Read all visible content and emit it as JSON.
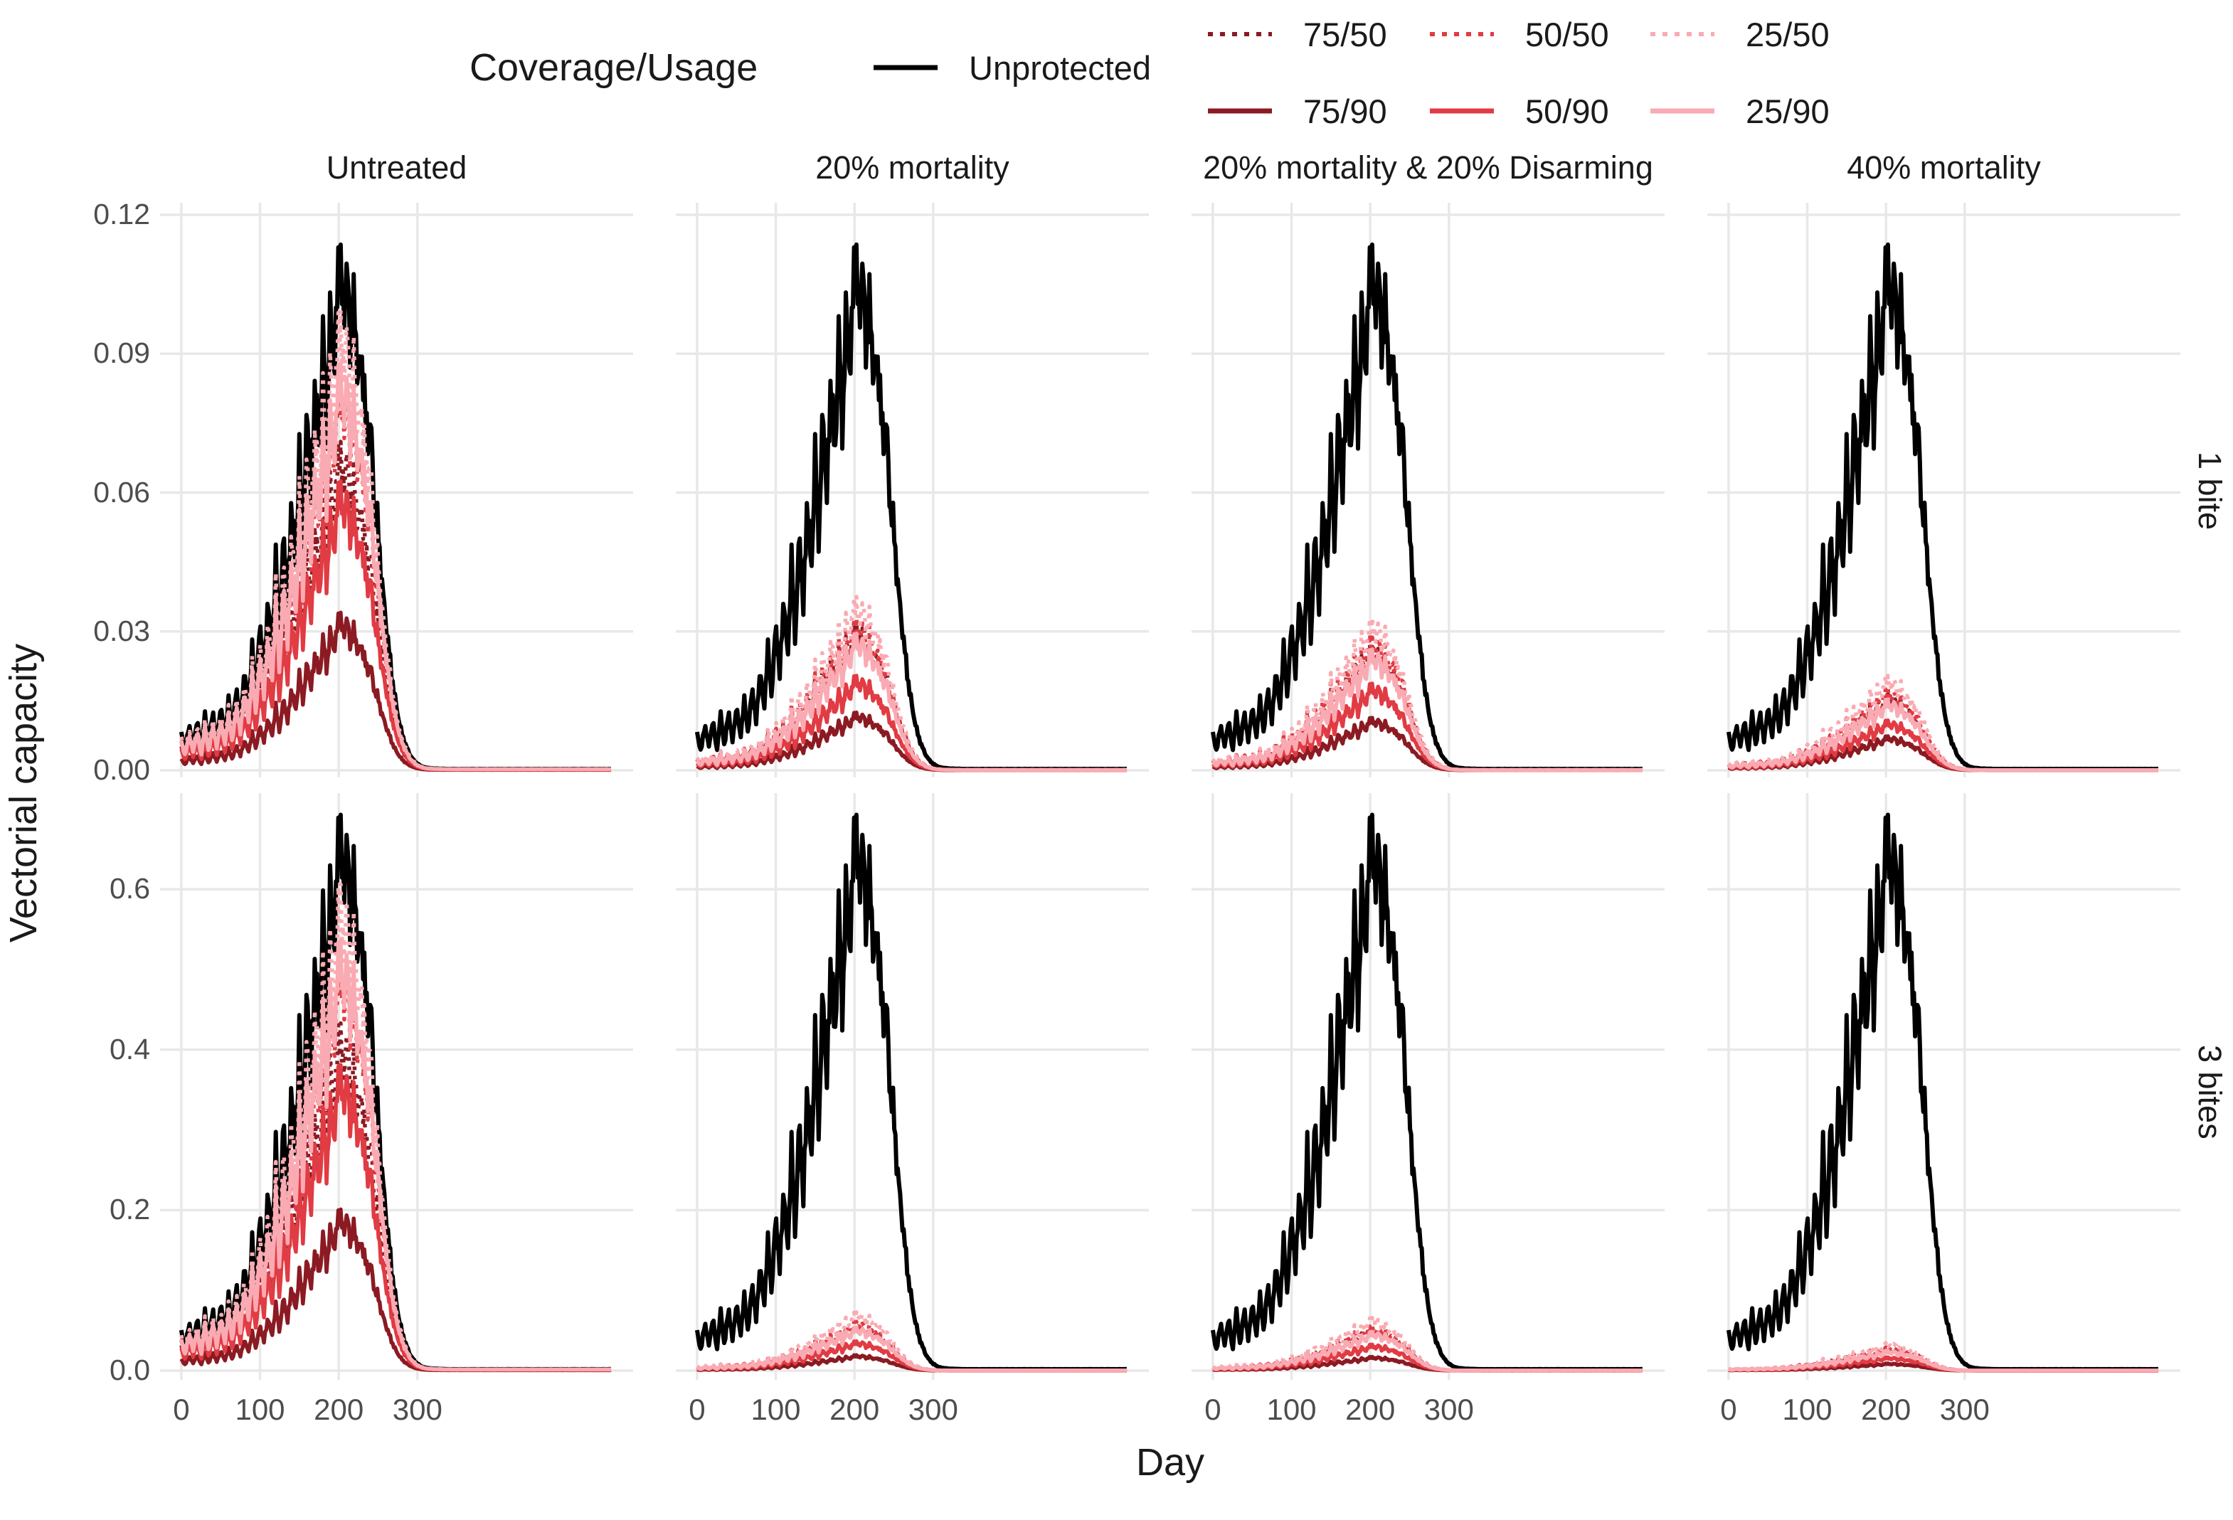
{
  "figure": {
    "legend": {
      "title": "Coverage/Usage",
      "entries": [
        {
          "id": "unprotected",
          "label": "Unprotected",
          "color": "#000000",
          "linetype": "solid"
        },
        {
          "id": "75_50",
          "label": "75/50",
          "color": "#8B1A22",
          "linetype": "dotted"
        },
        {
          "id": "50_50",
          "label": "50/50",
          "color": "#E13B43",
          "linetype": "dotted"
        },
        {
          "id": "25_50",
          "label": "25/50",
          "color": "#FAAAB2",
          "linetype": "dotted"
        },
        {
          "id": "75_90",
          "label": "75/90",
          "color": "#8B1A22",
          "linetype": "solid"
        },
        {
          "id": "50_90",
          "label": "50/90",
          "color": "#E13B43",
          "linetype": "solid"
        },
        {
          "id": "25_90",
          "label": "25/90",
          "color": "#FAAAB2",
          "linetype": "solid"
        }
      ]
    },
    "axes": {
      "x_label": "Day",
      "y_label": "Vectorial capacity"
    }
  },
  "chart_data": {
    "type": "line",
    "title": "",
    "xlabel": "Day",
    "ylabel": "Vectorial capacity",
    "facet_columns": [
      "Untreated",
      "20% mortality",
      "20% mortality & 20% Disarming",
      "40% mortality"
    ],
    "facet_rows": [
      "1 bite",
      "3 bites"
    ],
    "x": {
      "domain_days": [
        0,
        547
      ],
      "ticks": [
        0,
        100,
        200,
        300
      ]
    },
    "y_rows": [
      {
        "ticks": [
          0,
          0.03,
          0.06,
          0.09,
          0.12
        ],
        "tick_labels": [
          "0.00",
          "0.03",
          "0.06",
          "0.09",
          "0.12"
        ],
        "panel_max": 0.1226
      },
      {
        "ticks": [
          0,
          0.2,
          0.4,
          0.6
        ],
        "tick_labels": [
          "0.0",
          "0.2",
          "0.4",
          "0.6"
        ],
        "panel_max": 0.72
      }
    ],
    "grid": true,
    "grid_color": "#E8E8E8",
    "legend_position": "top",
    "row_scale": [
      1,
      6.1
    ],
    "unprotected_base_curve": {
      "comment_units": "vectorial capacity for 1 bite row; 3 bites row = value * row_scale",
      "days": [
        0,
        5,
        10,
        15,
        20,
        25,
        30,
        35,
        40,
        45,
        50,
        55,
        60,
        65,
        70,
        75,
        80,
        85,
        90,
        95,
        100,
        105,
        110,
        115,
        120,
        125,
        130,
        135,
        140,
        145,
        150,
        155,
        160,
        165,
        170,
        175,
        180,
        185,
        190,
        195,
        200,
        205,
        210,
        215,
        220,
        225,
        230,
        235,
        240,
        245,
        250,
        255,
        260,
        265,
        270,
        275,
        280,
        285,
        290,
        295,
        300,
        305,
        310,
        320,
        340,
        380,
        420,
        480,
        547
      ],
      "values": [
        0.008,
        0.004,
        0.01,
        0.005,
        0.011,
        0.004,
        0.012,
        0.005,
        0.013,
        0.006,
        0.014,
        0.007,
        0.015,
        0.008,
        0.018,
        0.01,
        0.022,
        0.013,
        0.026,
        0.016,
        0.032,
        0.02,
        0.038,
        0.024,
        0.045,
        0.028,
        0.052,
        0.034,
        0.06,
        0.042,
        0.068,
        0.05,
        0.078,
        0.058,
        0.086,
        0.066,
        0.094,
        0.074,
        0.101,
        0.085,
        0.115,
        0.098,
        0.108,
        0.092,
        0.1,
        0.084,
        0.09,
        0.072,
        0.076,
        0.058,
        0.052,
        0.04,
        0.032,
        0.024,
        0.017,
        0.012,
        0.008,
        0.0055,
        0.0035,
        0.0022,
        0.0014,
        0.0009,
        0.0006,
        0.0004,
        0.0003,
        0.0003,
        0.0003,
        0.0003,
        0.0003
      ]
    },
    "peak_values_unprotected": {
      "1_bite": 0.115,
      "3_bites": 0.7
    },
    "reduction_multipliers": [
      {
        "Untreated": {
          "75_50": 0.625,
          "50_50": 0.75,
          "25_50": 0.875,
          "75_90": 0.3,
          "50_90": 0.55,
          "25_90": 0.775
        },
        "20% mortality": {
          "75_50": 0.28,
          "50_50": 0.29,
          "25_50": 0.33,
          "75_90": 0.11,
          "50_90": 0.18,
          "25_90": 0.26
        },
        "20% mortality & 20% Disarming": {
          "75_50": 0.24,
          "50_50": 0.26,
          "25_50": 0.29,
          "75_90": 0.1,
          "50_90": 0.165,
          "25_90": 0.23
        },
        "40% mortality": {
          "75_50": 0.145,
          "50_50": 0.155,
          "25_50": 0.18,
          "75_90": 0.065,
          "50_90": 0.095,
          "25_90": 0.135
        }
      },
      {
        "Untreated": {
          "75_50": 0.625,
          "50_50": 0.75,
          "25_50": 0.875,
          "75_90": 0.29,
          "50_90": 0.55,
          "25_90": 0.775
        },
        "20% mortality": {
          "75_50": 0.082,
          "50_50": 0.088,
          "25_50": 0.105,
          "75_90": 0.028,
          "50_90": 0.053,
          "25_90": 0.078
        },
        "20% mortality & 20% Disarming": {
          "75_50": 0.074,
          "50_50": 0.08,
          "25_50": 0.095,
          "75_90": 0.025,
          "50_90": 0.047,
          "25_90": 0.07
        },
        "40% mortality": {
          "75_50": 0.038,
          "50_50": 0.042,
          "25_50": 0.05,
          "75_90": 0.013,
          "50_90": 0.024,
          "25_90": 0.036
        }
      }
    ],
    "noise": {
      "amp1": 0.05,
      "freq1": 1.9,
      "amp2": 0.04,
      "freq2": 0.83,
      "phase2": 2.0,
      "step_days": 1.5
    }
  }
}
